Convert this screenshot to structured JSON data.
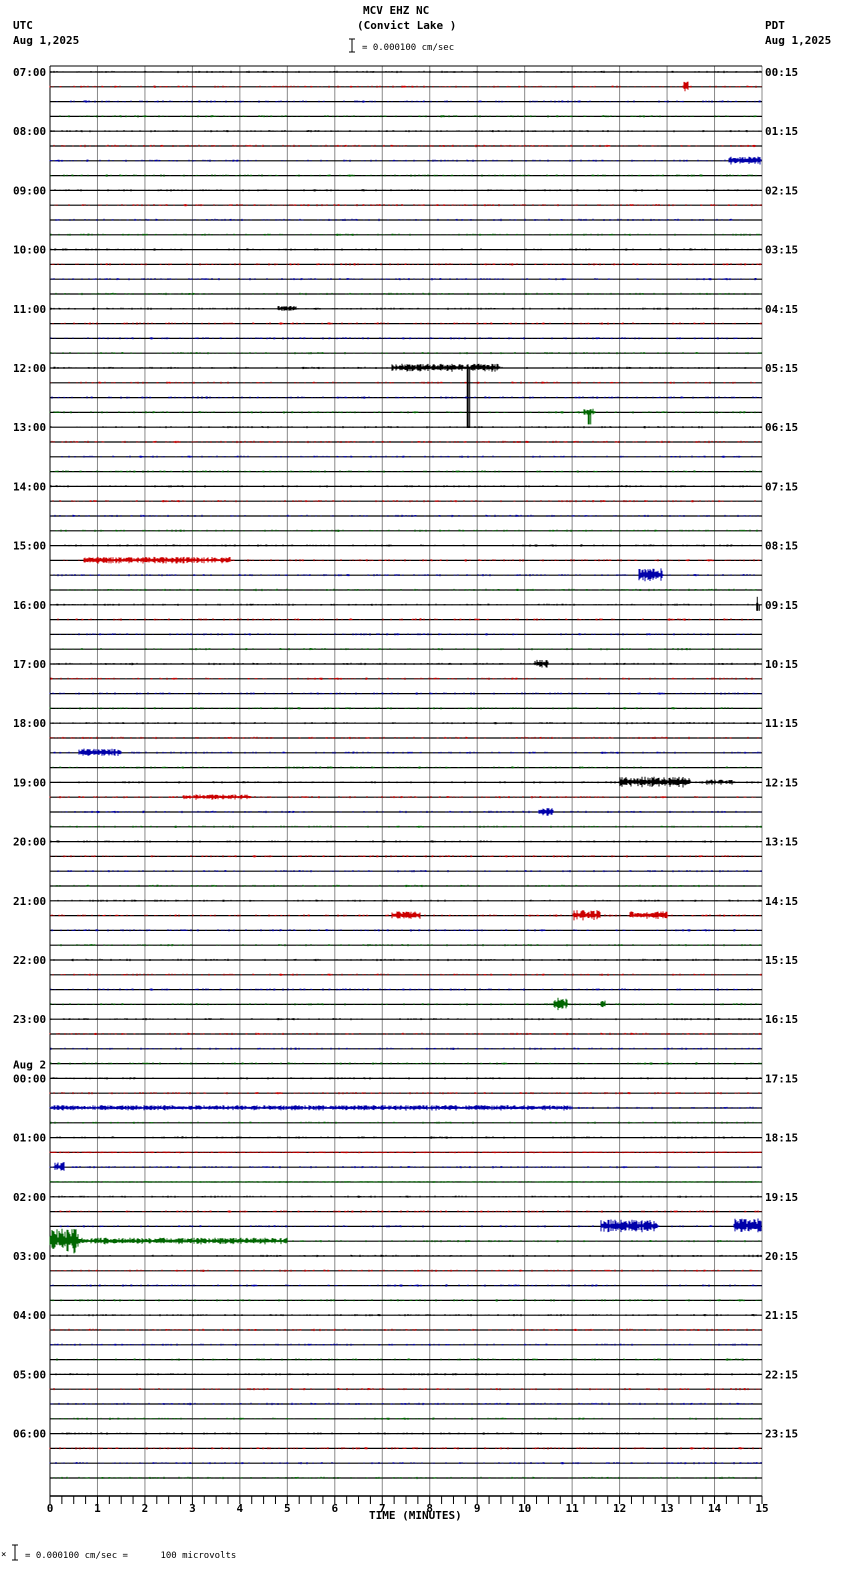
{
  "header": {
    "station_line": "MCV EHZ NC",
    "location_line": "(Convict Lake )",
    "scale_text": "= 0.000100 cm/sec",
    "left_tz": "UTC",
    "left_date": "Aug 1,2025",
    "right_tz": "PDT",
    "right_date": "Aug 1,2025"
  },
  "footer": {
    "scale_text": "= 0.000100 cm/sec =      100 microvolts",
    "x_axis_title": "TIME (MINUTES)"
  },
  "colors": {
    "trace_cycle": [
      "#000000",
      "#cc0000",
      "#0000aa",
      "#006600"
    ],
    "grid": "#888888",
    "frame": "#000000"
  },
  "chart_data": {
    "type": "line",
    "title": "MCV EHZ NC (Convict Lake )",
    "subtitle": "= 0.000100 cm/sec",
    "xlabel": "TIME (MINUTES)",
    "ylabel": "",
    "xlim": [
      0,
      15
    ],
    "x_ticks": [
      0,
      1,
      2,
      3,
      4,
      5,
      6,
      7,
      8,
      9,
      10,
      11,
      12,
      13,
      14,
      15
    ],
    "x_minor_ticks_per_minute": 4,
    "grid": true,
    "rows": 96,
    "rows_per_hour": 4,
    "minutes_per_row": 15,
    "left_labels": [
      {
        "row": 0,
        "text": "07:00"
      },
      {
        "row": 4,
        "text": "08:00"
      },
      {
        "row": 8,
        "text": "09:00"
      },
      {
        "row": 12,
        "text": "10:00"
      },
      {
        "row": 16,
        "text": "11:00"
      },
      {
        "row": 20,
        "text": "12:00"
      },
      {
        "row": 24,
        "text": "13:00"
      },
      {
        "row": 28,
        "text": "14:00"
      },
      {
        "row": 32,
        "text": "15:00"
      },
      {
        "row": 36,
        "text": "16:00"
      },
      {
        "row": 40,
        "text": "17:00"
      },
      {
        "row": 44,
        "text": "18:00"
      },
      {
        "row": 48,
        "text": "19:00"
      },
      {
        "row": 52,
        "text": "20:00"
      },
      {
        "row": 56,
        "text": "21:00"
      },
      {
        "row": 60,
        "text": "22:00"
      },
      {
        "row": 64,
        "text": "23:00"
      },
      {
        "row": 68,
        "text": "00:00",
        "date": "Aug 2"
      },
      {
        "row": 72,
        "text": "01:00"
      },
      {
        "row": 76,
        "text": "02:00"
      },
      {
        "row": 80,
        "text": "03:00"
      },
      {
        "row": 84,
        "text": "04:00"
      },
      {
        "row": 88,
        "text": "05:00"
      },
      {
        "row": 92,
        "text": "06:00"
      }
    ],
    "right_labels": [
      {
        "row": 0,
        "text": "00:15"
      },
      {
        "row": 4,
        "text": "01:15"
      },
      {
        "row": 8,
        "text": "02:15"
      },
      {
        "row": 12,
        "text": "03:15"
      },
      {
        "row": 16,
        "text": "04:15"
      },
      {
        "row": 20,
        "text": "05:15"
      },
      {
        "row": 24,
        "text": "06:15"
      },
      {
        "row": 28,
        "text": "07:15"
      },
      {
        "row": 32,
        "text": "08:15"
      },
      {
        "row": 36,
        "text": "09:15"
      },
      {
        "row": 40,
        "text": "10:15"
      },
      {
        "row": 44,
        "text": "11:15"
      },
      {
        "row": 48,
        "text": "12:15"
      },
      {
        "row": 52,
        "text": "13:15"
      },
      {
        "row": 56,
        "text": "14:15"
      },
      {
        "row": 60,
        "text": "15:15"
      },
      {
        "row": 64,
        "text": "16:15"
      },
      {
        "row": 68,
        "text": "17:15"
      },
      {
        "row": 72,
        "text": "18:15"
      },
      {
        "row": 76,
        "text": "19:15"
      },
      {
        "row": 80,
        "text": "20:15"
      },
      {
        "row": 84,
        "text": "21:15"
      },
      {
        "row": 88,
        "text": "22:15"
      },
      {
        "row": 92,
        "text": "23:15"
      }
    ],
    "base_noise": 1.2,
    "events": [
      {
        "row": 1,
        "start": 13.35,
        "end": 13.45,
        "amp": 4
      },
      {
        "row": 6,
        "start": 14.3,
        "end": 15.0,
        "amp": 3
      },
      {
        "row": 16,
        "start": 4.8,
        "end": 5.2,
        "amp": 2
      },
      {
        "row": 20,
        "start": 7.2,
        "end": 9.5,
        "amp": 3
      },
      {
        "row": 20,
        "start": 8.75,
        "end": 8.85,
        "amp": 0,
        "spike_down": 60
      },
      {
        "row": 23,
        "start": 11.25,
        "end": 11.45,
        "amp": 3,
        "spike_down": 12
      },
      {
        "row": 33,
        "start": 0.7,
        "end": 3.8,
        "amp": 2.5
      },
      {
        "row": 34,
        "start": 12.4,
        "end": 12.9,
        "amp": 5
      },
      {
        "row": 36,
        "start": 14.85,
        "end": 14.95,
        "amp": 0,
        "spike_up": 8,
        "spike_down": 6
      },
      {
        "row": 40,
        "start": 10.2,
        "end": 10.5,
        "amp": 3
      },
      {
        "row": 46,
        "start": 0.6,
        "end": 1.5,
        "amp": 3
      },
      {
        "row": 48,
        "start": 12.0,
        "end": 13.5,
        "amp": 4
      },
      {
        "row": 48,
        "start": 13.8,
        "end": 14.4,
        "amp": 2
      },
      {
        "row": 49,
        "start": 2.8,
        "end": 4.2,
        "amp": 2
      },
      {
        "row": 50,
        "start": 10.3,
        "end": 10.6,
        "amp": 3
      },
      {
        "row": 57,
        "start": 7.2,
        "end": 7.8,
        "amp": 3
      },
      {
        "row": 57,
        "start": 11.0,
        "end": 11.6,
        "amp": 4
      },
      {
        "row": 57,
        "start": 12.2,
        "end": 13.0,
        "amp": 3
      },
      {
        "row": 63,
        "start": 10.6,
        "end": 10.9,
        "amp": 5
      },
      {
        "row": 63,
        "start": 11.6,
        "end": 11.7,
        "amp": 3
      },
      {
        "row": 70,
        "start": 0.0,
        "end": 11.0,
        "amp": 2
      },
      {
        "row": 73,
        "start": 0.0,
        "end": 15.0,
        "amp": 0.6
      },
      {
        "row": 74,
        "start": 0.1,
        "end": 0.3,
        "amp": 4
      },
      {
        "row": 75,
        "start": 0.0,
        "end": 15.0,
        "amp": 0.6
      },
      {
        "row": 78,
        "start": 11.6,
        "end": 12.8,
        "amp": 5
      },
      {
        "row": 78,
        "start": 14.4,
        "end": 15.0,
        "amp": 6
      },
      {
        "row": 79,
        "start": 0.0,
        "end": 0.6,
        "amp": 9
      },
      {
        "row": 79,
        "start": 0.6,
        "end": 5.0,
        "amp": 2.5
      }
    ]
  }
}
